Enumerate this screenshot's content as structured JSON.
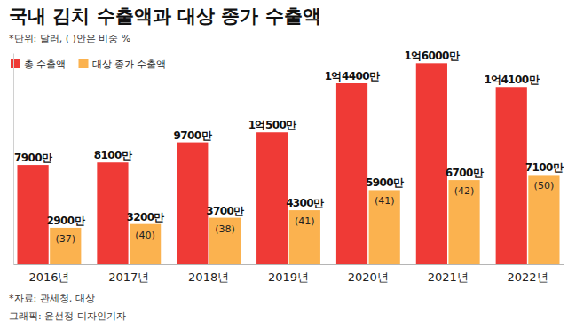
{
  "chart_data": {
    "type": "bar",
    "title": "국내 김치 수출액과 대상 종가 수출액",
    "subtitle": "*단위: 달러, ( )안은 비중 %",
    "source": "*자료: 관세청, 대상",
    "credit": "그래픽: 윤선정 디자인기자",
    "categories": [
      "2016년",
      "2017년",
      "2018년",
      "2019년",
      "2020년",
      "2021년",
      "2022년"
    ],
    "series": [
      {
        "name": "총 수출액",
        "color": "#ef3a36",
        "values": [
          79000000,
          81000000,
          97000000,
          105000000,
          144000000,
          160000000,
          141000000
        ],
        "value_labels": [
          "7900만",
          "8100만",
          "9700만",
          "1억500만",
          "1억4400만",
          "1억6000만",
          "1억4100만"
        ]
      },
      {
        "name": "대상 종가 수출액",
        "color": "#fbb24f",
        "values": [
          29000000,
          32000000,
          37000000,
          43000000,
          59000000,
          67000000,
          71000000
        ],
        "value_labels": [
          "2900만",
          "3200만",
          "3700만",
          "4300만",
          "5900만",
          "6700만",
          "7100만"
        ],
        "share_labels": [
          "(37)",
          "(40)",
          "(38)",
          "(41)",
          "(41)",
          "(42)",
          "(50)"
        ]
      }
    ],
    "ylim": [
      0,
      168000000
    ],
    "yticks": [],
    "grid": false,
    "legend": "top-left",
    "data_labels": true,
    "tick_labels": "x"
  }
}
